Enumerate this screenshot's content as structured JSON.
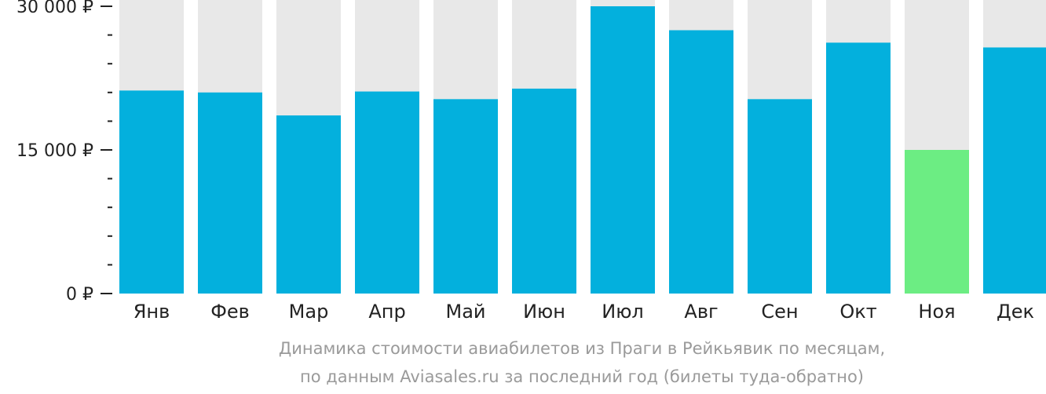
{
  "chart_data": {
    "type": "bar",
    "categories": [
      "Янв",
      "Фев",
      "Мар",
      "Апр",
      "Май",
      "Июн",
      "Июл",
      "Авг",
      "Сен",
      "Окт",
      "Ноя",
      "Дек"
    ],
    "values": [
      21200,
      21000,
      18600,
      21100,
      20300,
      21400,
      30000,
      27500,
      20300,
      26200,
      15000,
      25700
    ],
    "ylim": [
      0,
      30000
    ],
    "yticks": [
      {
        "value": 0,
        "label": "0 ₽"
      },
      {
        "value": 15000,
        "label": "15 000 ₽"
      },
      {
        "value": 30000,
        "label": "30 000 ₽"
      }
    ],
    "minor_tick_step": 3000,
    "highlight_index": 10,
    "colors": {
      "bar": "#03b0dd",
      "highlight": "#6ced83",
      "background_bar": "#e8e8e8",
      "axis": "#222222",
      "text": "#222222"
    }
  },
  "caption": {
    "line1": "Динамика стоимости авиабилетов из Праги в Рейкьявик по месяцам,",
    "line2": "по данным Aviasales.ru за последний год (билеты туда-обратно)"
  }
}
